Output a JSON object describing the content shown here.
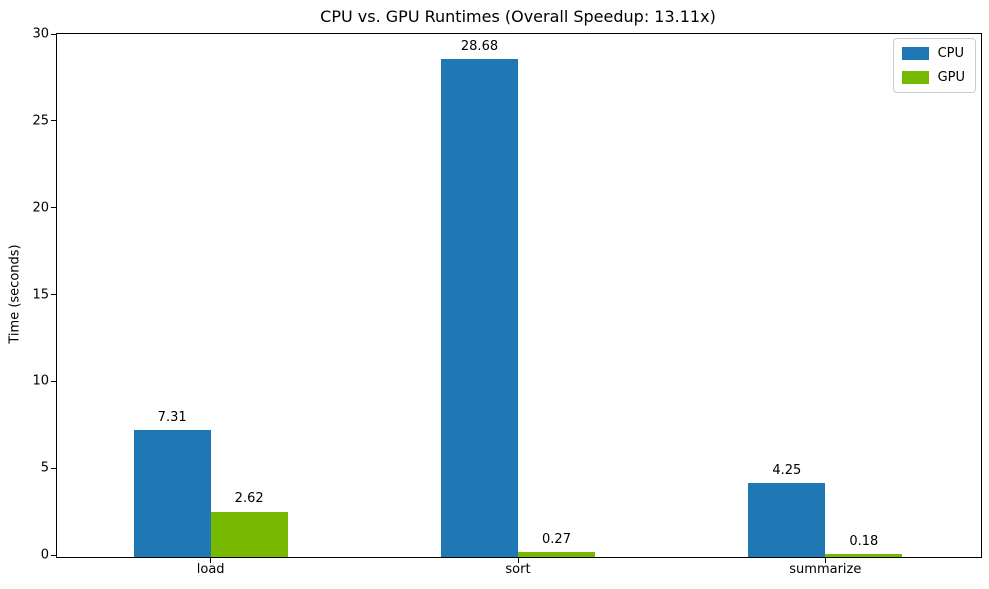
{
  "chart_data": {
    "type": "bar",
    "title": "CPU vs. GPU Runtimes (Overall Speedup: 13.11x)",
    "xlabel": "",
    "ylabel": "Time (seconds)",
    "categories": [
      "load",
      "sort",
      "summarize"
    ],
    "series": [
      {
        "name": "CPU",
        "color": "#1f77b4",
        "values": [
          7.31,
          28.68,
          4.25
        ]
      },
      {
        "name": "GPU",
        "color": "#76b900",
        "values": [
          2.62,
          0.27,
          0.18
        ]
      }
    ],
    "value_labels": [
      {
        "series": "CPU",
        "labels": [
          "7.31",
          "28.68",
          "4.25"
        ]
      },
      {
        "series": "GPU",
        "labels": [
          "2.62",
          "0.27",
          "0.18"
        ]
      }
    ],
    "ylim": [
      0,
      30
    ],
    "yticks": [
      0,
      5,
      10,
      15,
      20,
      25,
      30
    ],
    "grid": false,
    "legend_position": "upper right",
    "frame_color": "#000000",
    "background_color": "#ffffff"
  }
}
